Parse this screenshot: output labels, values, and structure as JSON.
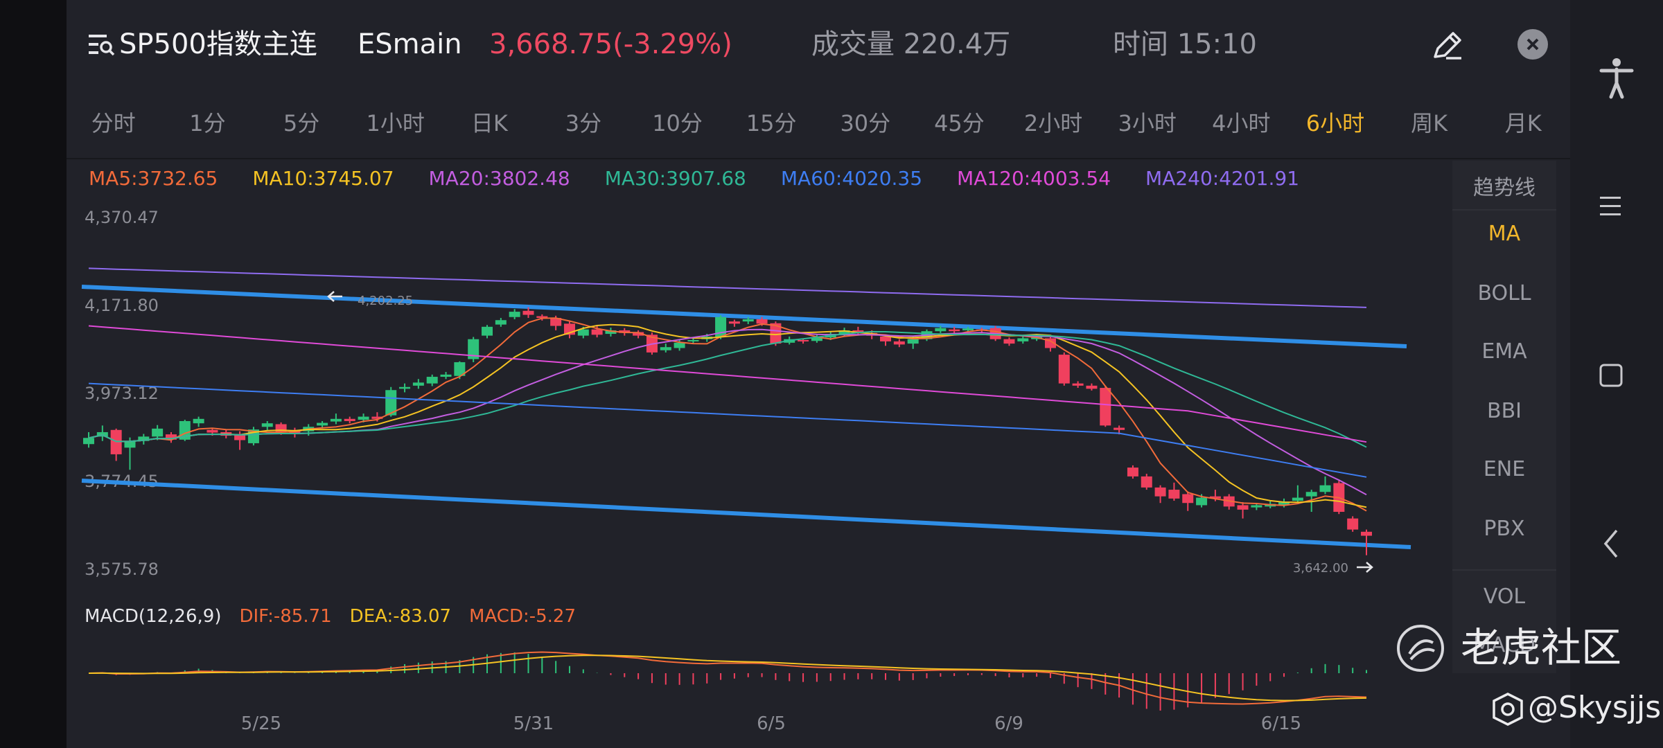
{
  "header": {
    "title": "SP500指数主连",
    "code": "ESmain",
    "price": "3,668.75(-3.29%)",
    "volume": "成交量 220.4万",
    "time": "时间 15:10"
  },
  "timeframes": [
    "分时",
    "1分",
    "5分",
    "1小时",
    "日K",
    "3分",
    "10分",
    "15分",
    "30分",
    "45分",
    "2小时",
    "3小时",
    "4小时",
    "6小时",
    "周K",
    "月K"
  ],
  "active_timeframe": "6小时",
  "ma_values": [
    {
      "label": "MA5:3732.65",
      "color": "#f26b3a"
    },
    {
      "label": "MA10:3745.07",
      "color": "#f5c323"
    },
    {
      "label": "MA20:3802.48",
      "color": "#c35ee0"
    },
    {
      "label": "MA30:3907.68",
      "color": "#2fb896"
    },
    {
      "label": "MA60:4020.35",
      "color": "#3e7ef3"
    },
    {
      "label": "MA120:4003.54",
      "color": "#e04bd8"
    },
    {
      "label": "MA240:4201.91",
      "color": "#8f6cf0"
    }
  ],
  "price_axis": [
    "4,370.47",
    "4,171.80",
    "3,973.12",
    "3,774.45",
    "3,575.78"
  ],
  "date_axis": [
    "5/25",
    "5/31",
    "6/5",
    "6/9",
    "6/15"
  ],
  "annotations": {
    "high": "4,202.25",
    "low": "3,642.00"
  },
  "indicator_panel": {
    "header": "趋势线",
    "items": [
      "MA",
      "BOLL",
      "EMA",
      "BBI",
      "ENE",
      "PBX",
      "VOL",
      "MACD"
    ],
    "active": "MA"
  },
  "macd": {
    "title": "MACD(12,26,9)",
    "dif": "DIF:-85.71",
    "dea": "DEA:-83.07",
    "macd": "MACD:-5.27"
  },
  "watermark": {
    "brand": "老虎社区",
    "user": "@Skysjjs"
  },
  "colors": {
    "up": "#2ec27a",
    "down": "#f0405e",
    "trendline": "#2f8ee6",
    "active": "#f3b72b",
    "price_down_text": "#ef4a62"
  },
  "candles": [
    {
      "o": 3893,
      "c": 3907,
      "h": 3920,
      "l": 3885
    },
    {
      "o": 3910,
      "c": 3920,
      "h": 3935,
      "l": 3900
    },
    {
      "o": 3925,
      "c": 3870,
      "h": 3928,
      "l": 3855
    },
    {
      "o": 3885,
      "c": 3900,
      "h": 3908,
      "l": 3835
    },
    {
      "o": 3900,
      "c": 3910,
      "h": 3916,
      "l": 3892
    },
    {
      "o": 3910,
      "c": 3928,
      "h": 3936,
      "l": 3902
    },
    {
      "o": 3915,
      "c": 3903,
      "h": 3920,
      "l": 3896
    },
    {
      "o": 3903,
      "c": 3945,
      "h": 3948,
      "l": 3900
    },
    {
      "o": 3940,
      "c": 3950,
      "h": 3955,
      "l": 3932
    },
    {
      "o": 3925,
      "c": 3919,
      "h": 3930,
      "l": 3912
    },
    {
      "o": 3920,
      "c": 3912,
      "h": 3926,
      "l": 3906
    },
    {
      "o": 3915,
      "c": 3902,
      "h": 3922,
      "l": 3880
    },
    {
      "o": 3895,
      "c": 3926,
      "h": 3932,
      "l": 3890
    },
    {
      "o": 3932,
      "c": 3940,
      "h": 3945,
      "l": 3925
    },
    {
      "o": 3938,
      "c": 3920,
      "h": 3942,
      "l": 3914
    },
    {
      "o": 3922,
      "c": 3916,
      "h": 3930,
      "l": 3908
    },
    {
      "o": 3922,
      "c": 3932,
      "h": 3938,
      "l": 3912
    },
    {
      "o": 3935,
      "c": 3941,
      "h": 3945,
      "l": 3928
    },
    {
      "o": 3944,
      "c": 3950,
      "h": 3962,
      "l": 3938
    },
    {
      "o": 3950,
      "c": 3945,
      "h": 3955,
      "l": 3940
    },
    {
      "o": 3948,
      "c": 3955,
      "h": 3962,
      "l": 3942
    },
    {
      "o": 3955,
      "c": 3950,
      "h": 3965,
      "l": 3944
    },
    {
      "o": 3958,
      "c": 4015,
      "h": 4022,
      "l": 3955
    },
    {
      "o": 4018,
      "c": 4022,
      "h": 4030,
      "l": 4010
    },
    {
      "o": 4025,
      "c": 4032,
      "h": 4040,
      "l": 4018
    },
    {
      "o": 4030,
      "c": 4045,
      "h": 4050,
      "l": 4024
    },
    {
      "o": 4045,
      "c": 4050,
      "h": 4056,
      "l": 4040
    },
    {
      "o": 4047,
      "c": 4078,
      "h": 4080,
      "l": 4040
    },
    {
      "o": 4085,
      "c": 4130,
      "h": 4135,
      "l": 4078
    },
    {
      "o": 4138,
      "c": 4158,
      "h": 4162,
      "l": 4132
    },
    {
      "o": 4163,
      "c": 4173,
      "h": 4178,
      "l": 4158
    },
    {
      "o": 4180,
      "c": 4192,
      "h": 4198,
      "l": 4175
    },
    {
      "o": 4194,
      "c": 4185,
      "h": 4202,
      "l": 4178
    },
    {
      "o": 4182,
      "c": 4178,
      "h": 4186,
      "l": 4172
    },
    {
      "o": 4178,
      "c": 4160,
      "h": 4183,
      "l": 4150
    },
    {
      "o": 4165,
      "c": 4140,
      "h": 4170,
      "l": 4132
    },
    {
      "o": 4138,
      "c": 4152,
      "h": 4158,
      "l": 4132
    },
    {
      "o": 4152,
      "c": 4140,
      "h": 4160,
      "l": 4134
    },
    {
      "o": 4142,
      "c": 4150,
      "h": 4156,
      "l": 4136
    },
    {
      "o": 4150,
      "c": 4144,
      "h": 4155,
      "l": 4138
    },
    {
      "o": 4146,
      "c": 4138,
      "h": 4150,
      "l": 4132
    },
    {
      "o": 4140,
      "c": 4100,
      "h": 4145,
      "l": 4095
    },
    {
      "o": 4105,
      "c": 4112,
      "h": 4120,
      "l": 4100
    },
    {
      "o": 4110,
      "c": 4122,
      "h": 4128,
      "l": 4104
    },
    {
      "o": 4125,
      "c": 4128,
      "h": 4134,
      "l": 4120
    },
    {
      "o": 4130,
      "c": 4136,
      "h": 4142,
      "l": 4124
    },
    {
      "o": 4135,
      "c": 4180,
      "h": 4184,
      "l": 4130
    },
    {
      "o": 4170,
      "c": 4165,
      "h": 4174,
      "l": 4158
    },
    {
      "o": 4170,
      "c": 4175,
      "h": 4180,
      "l": 4164
    },
    {
      "o": 4175,
      "c": 4165,
      "h": 4180,
      "l": 4160
    },
    {
      "o": 4166,
      "c": 4120,
      "h": 4170,
      "l": 4115
    },
    {
      "o": 4122,
      "c": 4130,
      "h": 4136,
      "l": 4118
    },
    {
      "o": 4128,
      "c": 4126,
      "h": 4132,
      "l": 4120
    },
    {
      "o": 4126,
      "c": 4134,
      "h": 4140,
      "l": 4122
    },
    {
      "o": 4134,
      "c": 4142,
      "h": 4148,
      "l": 4128
    },
    {
      "o": 4142,
      "c": 4150,
      "h": 4156,
      "l": 4136
    },
    {
      "o": 4150,
      "c": 4144,
      "h": 4158,
      "l": 4140
    },
    {
      "o": 4144,
      "c": 4138,
      "h": 4150,
      "l": 4130
    },
    {
      "o": 4136,
      "c": 4125,
      "h": 4140,
      "l": 4115
    },
    {
      "o": 4125,
      "c": 4118,
      "h": 4130,
      "l": 4112
    },
    {
      "o": 4120,
      "c": 4130,
      "h": 4136,
      "l": 4108
    },
    {
      "o": 4130,
      "c": 4148,
      "h": 4152,
      "l": 4126
    },
    {
      "o": 4148,
      "c": 4155,
      "h": 4160,
      "l": 4144
    },
    {
      "o": 4152,
      "c": 4148,
      "h": 4158,
      "l": 4144
    },
    {
      "o": 4150,
      "c": 4154,
      "h": 4158,
      "l": 4146
    },
    {
      "o": 4152,
      "c": 4150,
      "h": 4156,
      "l": 4146
    },
    {
      "o": 4155,
      "c": 4130,
      "h": 4160,
      "l": 4126
    },
    {
      "o": 4130,
      "c": 4120,
      "h": 4134,
      "l": 4115
    },
    {
      "o": 4125,
      "c": 4132,
      "h": 4138,
      "l": 4120
    },
    {
      "o": 4130,
      "c": 4138,
      "h": 4142,
      "l": 4126
    },
    {
      "o": 4132,
      "c": 4110,
      "h": 4136,
      "l": 4102
    },
    {
      "o": 4095,
      "c": 4030,
      "h": 4100,
      "l": 4025
    },
    {
      "o": 4030,
      "c": 4025,
      "h": 4035,
      "l": 4020
    },
    {
      "o": 4025,
      "c": 4018,
      "h": 4030,
      "l": 4014
    },
    {
      "o": 4020,
      "c": 3935,
      "h": 4025,
      "l": 3932
    },
    {
      "o": 3930,
      "c": 3925,
      "h": 3935,
      "l": 3915
    },
    {
      "o": 3840,
      "c": 3820,
      "h": 3845,
      "l": 3815
    },
    {
      "o": 3820,
      "c": 3795,
      "h": 3826,
      "l": 3790
    },
    {
      "o": 3795,
      "c": 3775,
      "h": 3800,
      "l": 3760
    },
    {
      "o": 3790,
      "c": 3770,
      "h": 3806,
      "l": 3765
    },
    {
      "o": 3780,
      "c": 3760,
      "h": 3786,
      "l": 3742
    },
    {
      "o": 3755,
      "c": 3772,
      "h": 3780,
      "l": 3750
    },
    {
      "o": 3775,
      "c": 3770,
      "h": 3790,
      "l": 3764
    },
    {
      "o": 3775,
      "c": 3752,
      "h": 3780,
      "l": 3745
    },
    {
      "o": 3755,
      "c": 3745,
      "h": 3762,
      "l": 3725
    },
    {
      "o": 3750,
      "c": 3755,
      "h": 3760,
      "l": 3744
    },
    {
      "o": 3752,
      "c": 3758,
      "h": 3764,
      "l": 3748
    },
    {
      "o": 3755,
      "c": 3763,
      "h": 3770,
      "l": 3750
    },
    {
      "o": 3765,
      "c": 3772,
      "h": 3800,
      "l": 3760
    },
    {
      "o": 3775,
      "c": 3785,
      "h": 3790,
      "l": 3740
    },
    {
      "o": 3785,
      "c": 3800,
      "h": 3820,
      "l": 3780
    },
    {
      "o": 3805,
      "c": 3740,
      "h": 3810,
      "l": 3735
    },
    {
      "o": 3725,
      "c": 3700,
      "h": 3730,
      "l": 3695
    },
    {
      "o": 3695,
      "c": 3686,
      "h": 3700,
      "l": 3642
    }
  ]
}
